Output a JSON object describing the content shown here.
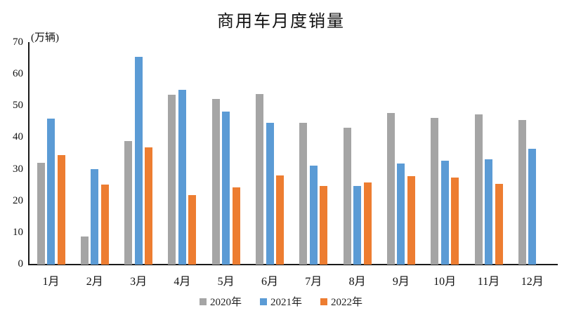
{
  "chart_data": {
    "type": "bar",
    "title": "商用车月度销量",
    "unit_label": "(万辆)",
    "categories": [
      "1月",
      "2月",
      "3月",
      "4月",
      "5月",
      "6月",
      "7月",
      "8月",
      "9月",
      "10月",
      "11月",
      "12月"
    ],
    "series": [
      {
        "name": "2020年",
        "color": "#A5A5A5",
        "values": [
          32.2,
          8.8,
          39.0,
          53.5,
          52.3,
          53.9,
          44.8,
          43.3,
          47.8,
          46.4,
          47.4,
          45.7
        ]
      },
      {
        "name": "2021年",
        "color": "#5B9BD5",
        "values": [
          46.1,
          30.2,
          65.5,
          55.2,
          48.4,
          44.7,
          31.2,
          24.8,
          32.0,
          32.8,
          33.2,
          36.6
        ]
      },
      {
        "name": "2022年",
        "color": "#ED7D31",
        "values": [
          34.6,
          25.2,
          37.1,
          21.9,
          24.3,
          28.1,
          24.7,
          26.0,
          28.0,
          27.5,
          25.5,
          null
        ]
      }
    ],
    "ylim": [
      0,
      70
    ],
    "ytick_step": 10,
    "grid": "off",
    "legend_position": "bottom"
  }
}
